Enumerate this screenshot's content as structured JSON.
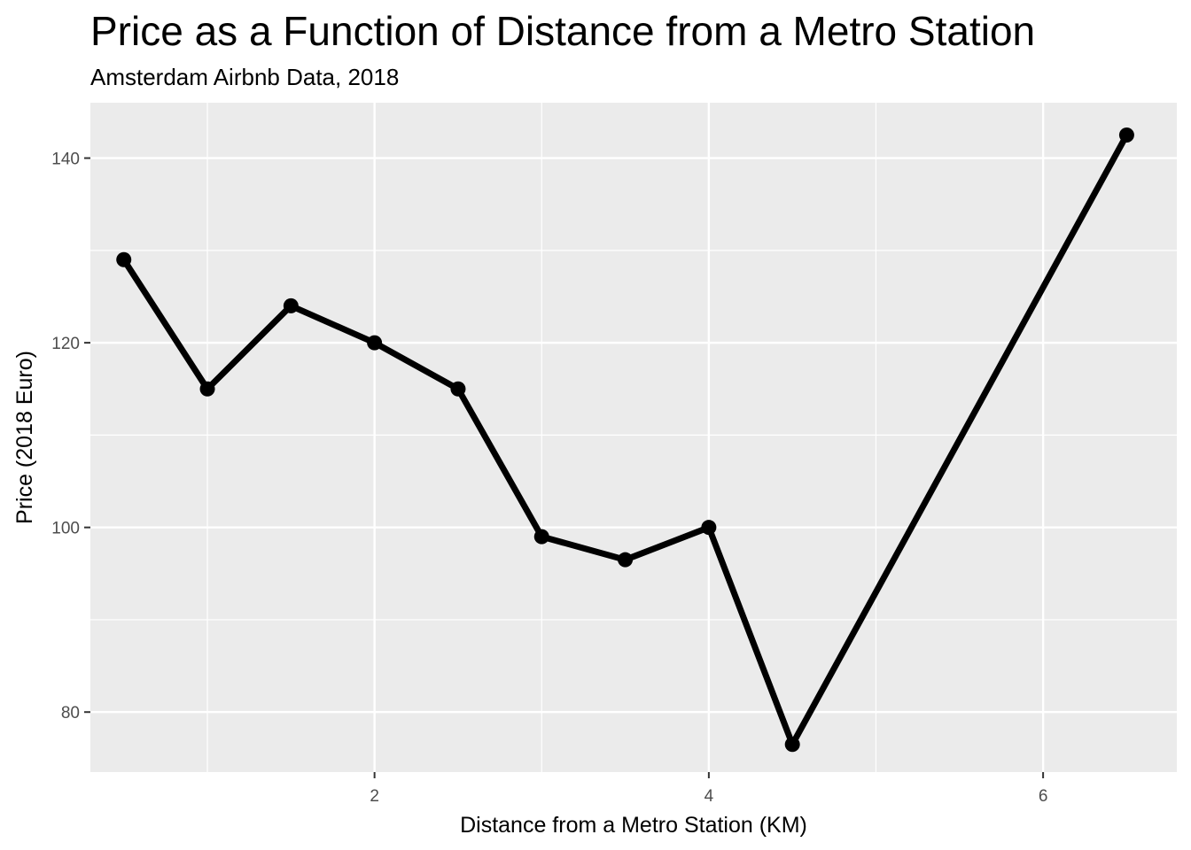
{
  "chart_data": {
    "type": "line",
    "title": "Price as a Function of Distance from a Metro Station",
    "subtitle": "Amsterdam Airbnb Data, 2018",
    "xlabel": "Distance from a Metro Station (KM)",
    "ylabel": "Price (2018 Euro)",
    "xlim": [
      0.3,
      6.8
    ],
    "ylim": [
      73.5,
      146
    ],
    "x_ticks": [
      2,
      4,
      6
    ],
    "y_ticks": [
      80,
      100,
      120,
      140
    ],
    "x_minor": [
      1,
      3,
      5
    ],
    "y_minor": [
      90,
      110,
      130
    ],
    "grid": true,
    "series": [
      {
        "x": [
          0.5,
          1.0,
          1.5,
          2.0,
          2.5,
          3.0,
          3.5,
          4.0,
          4.5,
          6.5
        ],
        "y": [
          129,
          115,
          124,
          120,
          115,
          99,
          96.5,
          100,
          76.5,
          142.5
        ]
      }
    ],
    "colors": {
      "panel": "#ebebeb",
      "grid": "#ffffff",
      "line": "#000000"
    }
  }
}
